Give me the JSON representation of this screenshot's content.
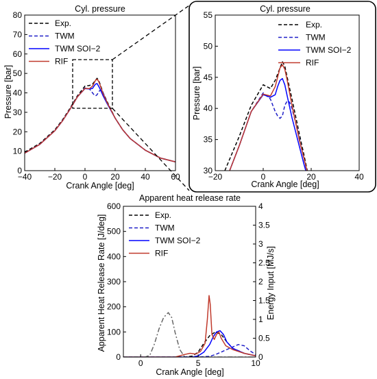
{
  "chart_data": [
    {
      "type": "line",
      "title": "Cyl. pressure",
      "xlabel": "Crank Angle [deg]",
      "ylabel": "Pressure [bar]",
      "xlim": [
        -40,
        60
      ],
      "ylim": [
        0,
        80
      ],
      "xticks": [
        -40,
        -20,
        0,
        20,
        40,
        60
      ],
      "xtick_labels": [
        "−40",
        "−20",
        "0",
        "20",
        "40",
        "60"
      ],
      "yticks": [
        0,
        10,
        20,
        30,
        40,
        50,
        60,
        70,
        80
      ],
      "ytick_labels": [
        "0",
        "10",
        "20",
        "30",
        "40",
        "50",
        "60",
        "70",
        "80"
      ],
      "legend": "top-left",
      "grid": false,
      "series": [
        {
          "name": "Exp.",
          "color": "#000000",
          "dash": "dashed",
          "x": [
            -40,
            -30,
            -20,
            -15,
            -10,
            -5,
            0,
            3,
            5,
            6,
            7,
            8,
            9,
            10,
            12,
            15,
            20,
            25,
            30,
            40,
            50,
            60
          ],
          "y": [
            9.5,
            14,
            21,
            26,
            32,
            38.5,
            43.5,
            43.8,
            44.5,
            45.5,
            46.5,
            47.5,
            46.5,
            44.5,
            40,
            35,
            27,
            21,
            16.5,
            10.5,
            6.5,
            4.5
          ]
        },
        {
          "name": "TWM",
          "color": "#1f1fc8",
          "dash": "dashed",
          "x": [
            -40,
            -30,
            -20,
            -15,
            -10,
            -5,
            0,
            3,
            5,
            6,
            7,
            8,
            9,
            10,
            11,
            12,
            15,
            20,
            25,
            30,
            40,
            50,
            60
          ],
          "y": [
            9,
            13.5,
            20.5,
            25.5,
            31.5,
            38,
            42.5,
            42,
            40,
            39,
            38.5,
            39,
            40.5,
            41.3,
            41,
            40,
            34.5,
            27,
            21,
            16.5,
            10.5,
            6.5,
            4.5
          ]
        },
        {
          "name": "TWM SOI−2",
          "color": "#0000ff",
          "dash": "solid",
          "x": [
            -40,
            -30,
            -20,
            -15,
            -10,
            -5,
            0,
            3,
            5,
            6,
            7,
            8,
            9,
            10,
            12,
            15,
            20,
            25,
            30,
            40,
            50,
            60
          ],
          "y": [
            9,
            13.5,
            20.5,
            25.5,
            31.5,
            38,
            42.2,
            42,
            42.3,
            43.5,
            44.5,
            44.8,
            43.5,
            42,
            38.5,
            34,
            27,
            21,
            16.5,
            10.5,
            6.5,
            4.5
          ]
        },
        {
          "name": "RIF",
          "color": "#c0392b",
          "dash": "solid",
          "x": [
            -40,
            -30,
            -20,
            -15,
            -10,
            -5,
            0,
            3,
            5,
            6,
            7,
            8,
            9,
            10,
            12,
            15,
            20,
            25,
            30,
            40,
            50,
            60
          ],
          "y": [
            9,
            13.5,
            20.5,
            25.5,
            31.5,
            38,
            42.3,
            42.2,
            43.5,
            45,
            46.5,
            47,
            46,
            44,
            39.5,
            34.5,
            27,
            21,
            16.5,
            10.5,
            6.5,
            4.5
          ]
        }
      ]
    },
    {
      "type": "line",
      "title": "Cyl. pressure",
      "xlabel": "Crank Angle [deg]",
      "ylabel": "Pressure [bar]",
      "xlim": [
        -20,
        40
      ],
      "ylim": [
        30,
        55
      ],
      "xticks": [
        -20,
        0,
        20,
        40
      ],
      "xtick_labels": [
        "−20",
        "0",
        "20",
        "40"
      ],
      "yticks": [
        30,
        35,
        40,
        45,
        50,
        55
      ],
      "ytick_labels": [
        "30",
        "35",
        "40",
        "45",
        "50",
        "55"
      ],
      "legend": "top-right",
      "grid": false,
      "series": [
        {
          "name": "Exp.",
          "color": "#000000",
          "dash": "dashed",
          "x": [
            -16,
            -10,
            -5,
            0,
            3,
            5,
            6,
            7,
            8,
            9,
            10,
            12,
            15,
            17,
            20
          ],
          "y": [
            30,
            35.5,
            40.5,
            43.8,
            43.2,
            44.5,
            45.5,
            46.5,
            47.5,
            46.8,
            45,
            41.5,
            36,
            32.5,
            27
          ]
        },
        {
          "name": "TWM",
          "color": "#1f1fc8",
          "dash": "dashed",
          "x": [
            -14,
            -10,
            -5,
            0,
            3,
            5,
            6,
            7,
            8,
            9,
            10,
            11,
            12,
            14,
            16,
            20
          ],
          "y": [
            30,
            34,
            39.5,
            42.5,
            41.5,
            39.5,
            38.8,
            38.4,
            38.8,
            40.5,
            41.2,
            41,
            40,
            37,
            33.5,
            27
          ]
        },
        {
          "name": "TWM SOI−2",
          "color": "#0000ff",
          "dash": "solid",
          "x": [
            -14,
            -10,
            -5,
            0,
            3,
            5,
            6,
            7,
            8,
            9,
            10,
            12,
            15,
            17,
            20
          ],
          "y": [
            30,
            34,
            39.5,
            42.2,
            41.8,
            42.2,
            43.5,
            44.5,
            44.8,
            43.8,
            42,
            38.5,
            34,
            31,
            27
          ]
        },
        {
          "name": "RIF",
          "color": "#c0392b",
          "dash": "solid",
          "x": [
            -14,
            -10,
            -5,
            0,
            3,
            5,
            6,
            7,
            8,
            9,
            10,
            12,
            15,
            17,
            20
          ],
          "y": [
            30,
            34,
            39.5,
            42.3,
            42,
            43.5,
            45,
            46.5,
            47,
            46.3,
            44.5,
            40.5,
            35,
            32,
            27
          ]
        }
      ]
    },
    {
      "type": "line",
      "title": "Apparent heat release rate",
      "xlabel": "Crank Angle [deg]",
      "ylabel": "Apparent Heat Release Rate [J/deg]",
      "ylabel_right": "Energy Input [MJ/s]",
      "xlim": [
        -1.5,
        10
      ],
      "ylim": [
        0,
        600
      ],
      "ylim_right": [
        0,
        4
      ],
      "xticks": [
        0,
        5,
        10
      ],
      "xtick_labels": [
        "0",
        "5",
        "10"
      ],
      "yticks": [
        0,
        100,
        200,
        300,
        400,
        500,
        600
      ],
      "ytick_labels": [
        "0",
        "100",
        "200",
        "300",
        "400",
        "500",
        "600"
      ],
      "yticks_right": [
        0,
        0.5,
        1,
        1.5,
        2,
        2.5,
        3,
        3.5,
        4
      ],
      "ytick_labels_right": [
        "0",
        "0.5",
        "1",
        "1.5",
        "2",
        "2.5",
        "3",
        "3.5",
        "4"
      ],
      "legend": "top-left",
      "grid": false,
      "series": [
        {
          "name": "Exp.",
          "color": "#000000",
          "dash": "dashed",
          "x": [
            -1.5,
            3,
            4,
            4.5,
            5,
            5.5,
            6,
            6.5,
            7,
            7.5,
            8,
            9,
            10
          ],
          "y": [
            0,
            0,
            1,
            4,
            20,
            55,
            85,
            100,
            90,
            60,
            35,
            15,
            5
          ]
        },
        {
          "name": "TWM",
          "color": "#1f1fc8",
          "dash": "dashed",
          "x": [
            -1.5,
            5,
            6,
            6.5,
            7,
            7.5,
            8,
            8.5,
            9,
            9.5,
            10
          ],
          "y": [
            0,
            0,
            3,
            10,
            20,
            30,
            40,
            50,
            45,
            25,
            10
          ]
        },
        {
          "name": "TWM SOI−2",
          "color": "#0000ff",
          "dash": "solid",
          "x": [
            -1.5,
            4.5,
            5,
            5.5,
            6,
            6.3,
            6.6,
            6.9,
            7.2,
            7.5,
            8,
            9,
            10
          ],
          "y": [
            0,
            0,
            5,
            20,
            50,
            80,
            100,
            105,
            90,
            60,
            35,
            15,
            5
          ]
        },
        {
          "name": "RIF",
          "color": "#c0392b",
          "dash": "solid",
          "x": [
            -1.5,
            3,
            3.8,
            4.3,
            4.8,
            5.2,
            5.6,
            5.8,
            5.95,
            6.05,
            6.2,
            6.4,
            6.6,
            6.8,
            7.0,
            7.4,
            8,
            9,
            10
          ],
          "y": [
            0,
            0,
            10,
            15,
            12,
            22,
            55,
            150,
            245,
            210,
            90,
            70,
            90,
            100,
            75,
            45,
            30,
            15,
            5
          ]
        },
        {
          "name": "",
          "color": "#666666",
          "dash": "dashdot",
          "axis": "right",
          "x": [
            -1.5,
            0.4,
            0.8,
            1.2,
            1.6,
            2,
            2.4,
            2.7,
            3,
            3.4,
            3.8,
            4,
            10
          ],
          "y": [
            0,
            0,
            0.05,
            0.35,
            0.75,
            1.05,
            1.18,
            1.05,
            0.65,
            0.2,
            0.02,
            0,
            0
          ]
        }
      ]
    }
  ]
}
